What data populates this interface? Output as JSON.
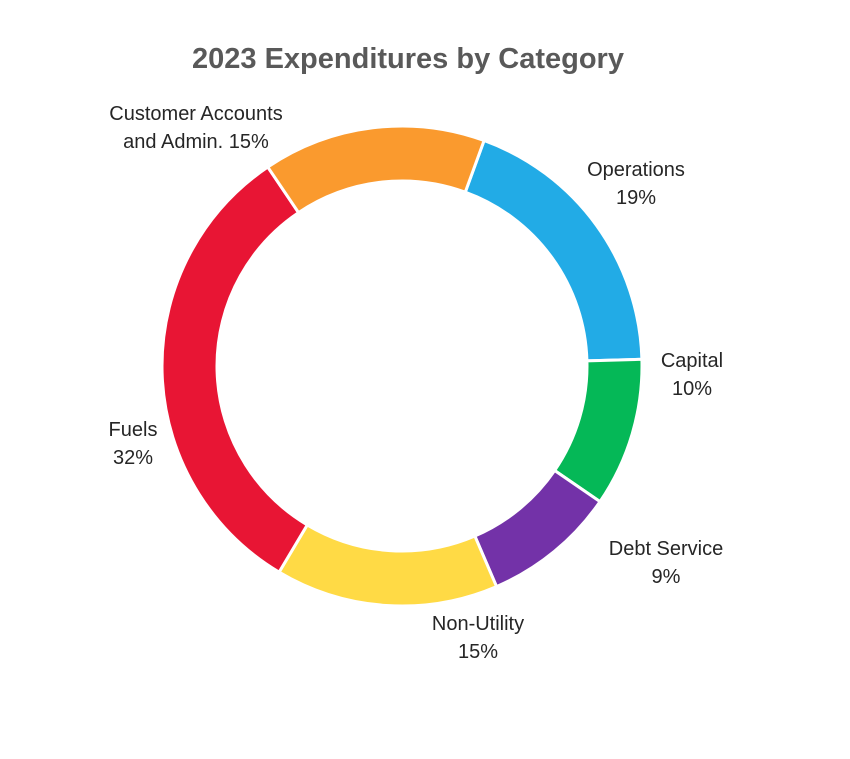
{
  "chart_data": {
    "type": "pie",
    "variant": "donut",
    "title": "2023 Expenditures by Category",
    "start_angle_deg": 20,
    "direction": "clockwise",
    "legend": "none",
    "slices": [
      {
        "label_lines": [
          "Operations",
          "19%"
        ],
        "value": 19,
        "color": "#22ABE6"
      },
      {
        "label_lines": [
          "Capital",
          "10%"
        ],
        "value": 10,
        "color": "#05B857"
      },
      {
        "label_lines": [
          "Debt Service",
          "9%"
        ],
        "value": 9,
        "color": "#7332A8"
      },
      {
        "label_lines": [
          "Non-Utility",
          "15%"
        ],
        "value": 15,
        "color": "#FFDA45"
      },
      {
        "label_lines": [
          "Fuels",
          "32%"
        ],
        "value": 32,
        "color": "#E81534"
      },
      {
        "label_lines": [
          "Customer Accounts",
          "and Admin. 15%"
        ],
        "value": 15,
        "color": "#FA9A2E"
      }
    ]
  }
}
